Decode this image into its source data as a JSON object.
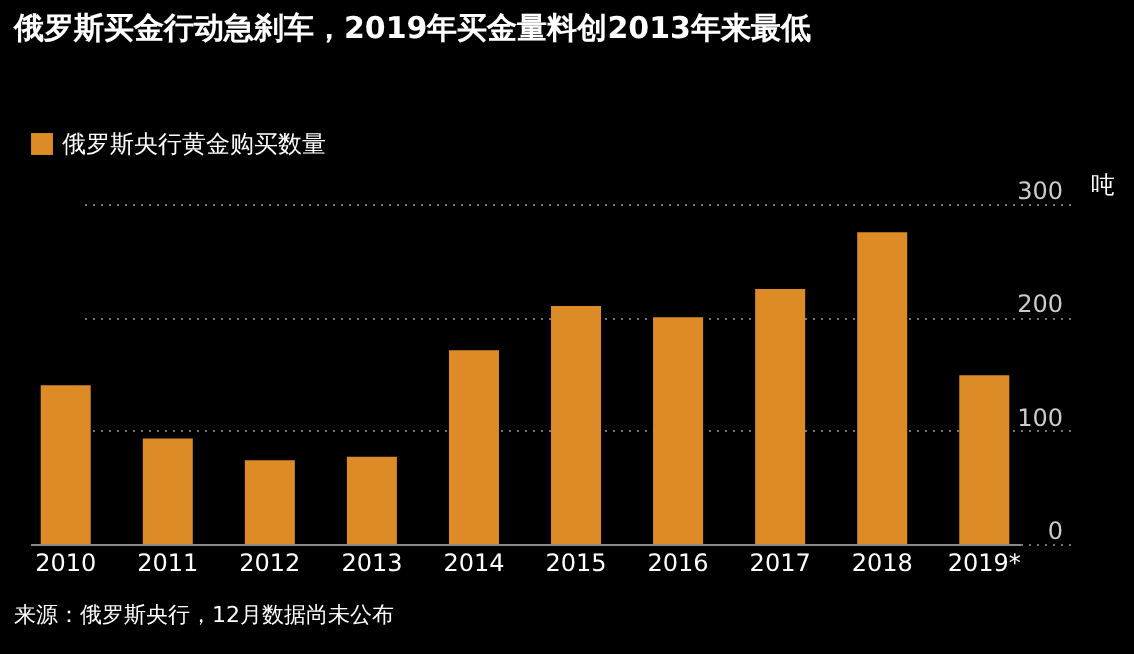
{
  "chart_data": {
    "type": "bar",
    "title": "俄罗斯买金行动急刹车，2019年买金量料创2013年来最低",
    "categories": [
      "2010",
      "2011",
      "2012",
      "2013",
      "2014",
      "2015",
      "2016",
      "2017",
      "2018",
      "2019*"
    ],
    "series": [
      {
        "name": "俄罗斯央行黄金购买数量",
        "color": "#dc8b26",
        "values": [
          140,
          93,
          74,
          77,
          171,
          210,
          200,
          225,
          275,
          149
        ]
      }
    ],
    "ylabel": "吨",
    "ylim": [
      0,
      300
    ],
    "yticks": [
      0,
      100,
      200,
      300
    ],
    "grid": "y",
    "legend": "top left",
    "annotations": [
      "来源：俄罗斯央行，12月数据尚未公布"
    ]
  }
}
